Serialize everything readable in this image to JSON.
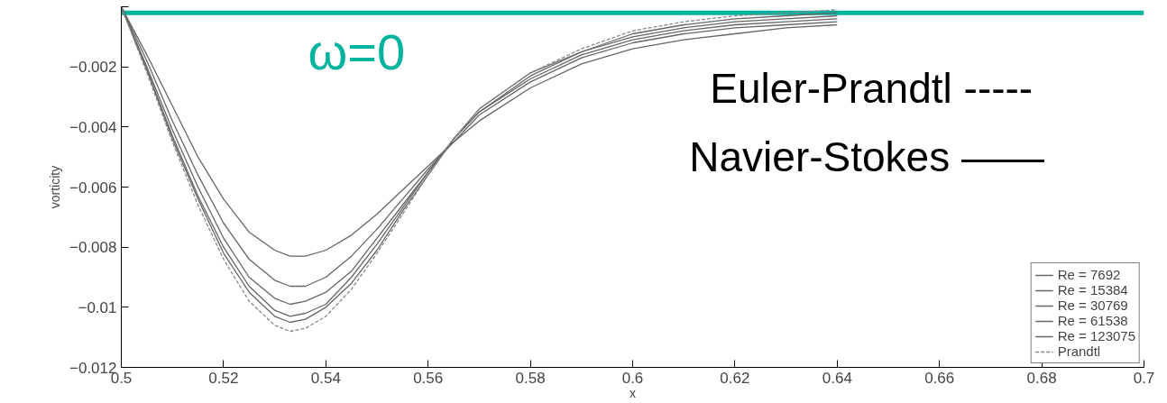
{
  "chart_data": {
    "type": "line",
    "xlabel": "x",
    "ylabel": "vorticity",
    "x": [
      0.5,
      0.505,
      0.51,
      0.515,
      0.52,
      0.525,
      0.53,
      0.533,
      0.536,
      0.54,
      0.545,
      0.55,
      0.555,
      0.56,
      0.565,
      0.57,
      0.58,
      0.59,
      0.6,
      0.61,
      0.62,
      0.63,
      0.64
    ],
    "series": [
      {
        "name": "Re = 7692",
        "color": "#666666",
        "values": [
          0,
          -0.0016,
          -0.0033,
          -0.005,
          -0.0064,
          -0.0075,
          -0.0081,
          -0.0083,
          -0.0083,
          -0.0081,
          -0.0076,
          -0.0069,
          -0.0061,
          -0.0053,
          -0.0045,
          -0.0038,
          -0.0027,
          -0.0019,
          -0.0014,
          -0.0011,
          -0.0009,
          -0.0007,
          -0.0006
        ]
      },
      {
        "name": "Re = 15384",
        "color": "#666666",
        "values": [
          0,
          -0.0018,
          -0.0038,
          -0.0056,
          -0.0072,
          -0.0084,
          -0.0091,
          -0.0093,
          -0.0093,
          -0.009,
          -0.0083,
          -0.0074,
          -0.0064,
          -0.0054,
          -0.0045,
          -0.0036,
          -0.0025,
          -0.0017,
          -0.0012,
          -0.0009,
          -0.0007,
          -0.0006,
          -0.0005
        ]
      },
      {
        "name": "Re = 30769",
        "color": "#666666",
        "values": [
          0,
          -0.002,
          -0.0041,
          -0.006,
          -0.0077,
          -0.009,
          -0.0097,
          -0.0099,
          -0.0098,
          -0.0095,
          -0.0088,
          -0.0077,
          -0.0066,
          -0.0055,
          -0.0044,
          -0.0035,
          -0.0024,
          -0.0016,
          -0.0011,
          -0.0008,
          -0.0006,
          -0.0005,
          -0.0004
        ]
      },
      {
        "name": "Re = 61538",
        "color": "#666666",
        "values": [
          0,
          -0.0021,
          -0.0043,
          -0.0063,
          -0.008,
          -0.0093,
          -0.0101,
          -0.0103,
          -0.0102,
          -0.0099,
          -0.009,
          -0.0079,
          -0.0067,
          -0.0055,
          -0.0044,
          -0.0035,
          -0.0023,
          -0.0015,
          -0.001,
          -0.0007,
          -0.0005,
          -0.0004,
          -0.0003
        ]
      },
      {
        "name": "Re = 123075",
        "color": "#666666",
        "values": [
          0,
          -0.0021,
          -0.0044,
          -0.0064,
          -0.0082,
          -0.0095,
          -0.0103,
          -0.0105,
          -0.0104,
          -0.01,
          -0.0092,
          -0.0081,
          -0.0068,
          -0.0056,
          -0.0044,
          -0.0034,
          -0.0022,
          -0.0015,
          -0.0009,
          -0.0006,
          -0.0004,
          -0.0003,
          -0.0002
        ]
      },
      {
        "name": "Prandtl",
        "color": "#888888",
        "line_style": "dashed",
        "values": [
          0,
          -0.0022,
          -0.0045,
          -0.0066,
          -0.0084,
          -0.0098,
          -0.0106,
          -0.0108,
          -0.0107,
          -0.0103,
          -0.0094,
          -0.0082,
          -0.0069,
          -0.0056,
          -0.0044,
          -0.0034,
          -0.0022,
          -0.0014,
          -0.0008,
          -0.0005,
          -0.0003,
          -0.0002,
          -0.0001
        ]
      }
    ],
    "xlim": [
      0.5,
      0.7
    ],
    "xticks": [
      0.5,
      0.52,
      0.54,
      0.56,
      0.58,
      0.6,
      0.62,
      0.64,
      0.66,
      0.68,
      0.7
    ],
    "ylim": [
      -0.012,
      0
    ],
    "yticks": [
      -0.012,
      -0.01,
      -0.008,
      -0.006,
      -0.004,
      -0.002,
      {
        "value": 0,
        "label": null
      }
    ],
    "ref_lines": [
      {
        "axis": "y",
        "value": -0.0002,
        "label": "ω=0",
        "color": "#00b39e"
      }
    ],
    "annotations": [
      "Euler-Prandtl  -----",
      "Navier-Stokes ——"
    ],
    "grid": false,
    "marker": "none",
    "legend": "bottom right"
  }
}
